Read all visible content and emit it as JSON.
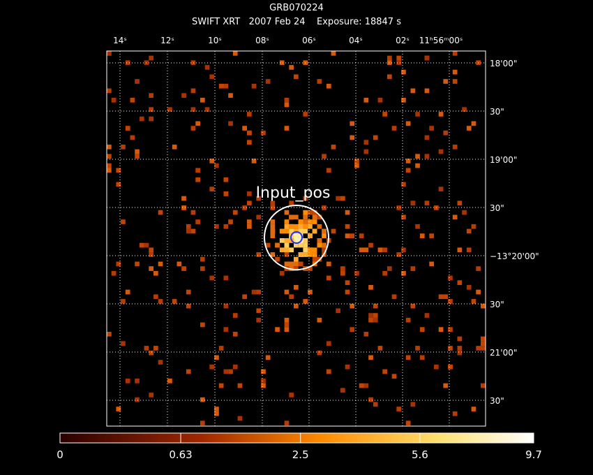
{
  "header": {
    "title": "GRB070224",
    "subtitle": "SWIFT XRT   2007 Feb 24    Exposure: 18847 s"
  },
  "image": {
    "ra_labels": [
      "14ˢ",
      "12ˢ",
      "10ˢ",
      "08ˢ",
      "06ˢ",
      "04ˢ",
      "02ˢ",
      "11ʰ56ᵐ00ˢ"
    ],
    "dec_labels": [
      "18'00\"",
      "30\"",
      "19'00\"",
      "30\"",
      "−13°20'00\"",
      "30\"",
      "21'00\"",
      "30\""
    ],
    "annotation": "Input_pos"
  },
  "colorbar": {
    "scale": "sqrt",
    "range": [
      0,
      9.7
    ],
    "ticks": [
      0,
      0.63,
      2.5,
      5.6,
      9.7
    ]
  }
}
